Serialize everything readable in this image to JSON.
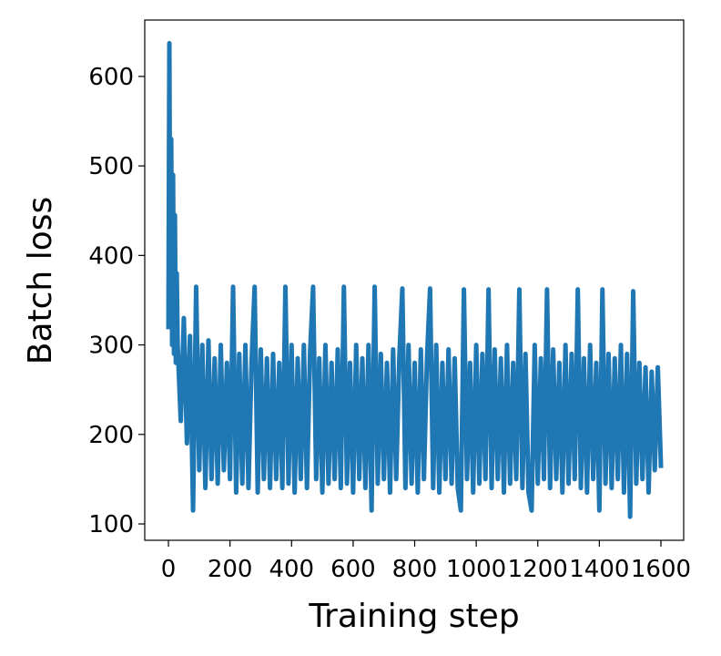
{
  "chart_data": {
    "type": "line",
    "xlabel": "Training step",
    "ylabel": "Batch loss",
    "color": "#1f77b4",
    "x": [
      0,
      3,
      6,
      9,
      12,
      15,
      18,
      21,
      24,
      27,
      30,
      40,
      50,
      60,
      70,
      80,
      90,
      100,
      110,
      120,
      130,
      140,
      150,
      160,
      170,
      180,
      190,
      200,
      210,
      220,
      230,
      240,
      250,
      260,
      270,
      280,
      290,
      300,
      310,
      320,
      330,
      340,
      350,
      360,
      370,
      380,
      390,
      400,
      410,
      420,
      430,
      440,
      450,
      460,
      470,
      480,
      490,
      500,
      510,
      520,
      530,
      540,
      550,
      560,
      570,
      580,
      590,
      600,
      610,
      620,
      630,
      640,
      650,
      660,
      670,
      680,
      690,
      700,
      710,
      720,
      730,
      740,
      750,
      760,
      770,
      780,
      790,
      800,
      810,
      820,
      830,
      840,
      850,
      860,
      870,
      880,
      890,
      900,
      910,
      920,
      930,
      940,
      950,
      960,
      970,
      980,
      990,
      1000,
      1010,
      1020,
      1030,
      1040,
      1050,
      1060,
      1070,
      1080,
      1090,
      1100,
      1110,
      1120,
      1130,
      1140,
      1150,
      1160,
      1170,
      1180,
      1190,
      1200,
      1210,
      1220,
      1230,
      1240,
      1250,
      1260,
      1270,
      1280,
      1290,
      1300,
      1310,
      1320,
      1330,
      1340,
      1350,
      1360,
      1370,
      1380,
      1390,
      1400,
      1410,
      1420,
      1430,
      1440,
      1450,
      1460,
      1470,
      1480,
      1490,
      1500,
      1510,
      1520,
      1530,
      1540,
      1550,
      1560,
      1570,
      1580,
      1590,
      1600
    ],
    "values": [
      320,
      637,
      330,
      530,
      300,
      490,
      290,
      445,
      280,
      380,
      300,
      215,
      330,
      190,
      310,
      115,
      365,
      160,
      300,
      140,
      305,
      150,
      285,
      145,
      300,
      160,
      280,
      150,
      365,
      135,
      290,
      145,
      300,
      140,
      280,
      365,
      135,
      295,
      150,
      285,
      140,
      290,
      150,
      280,
      140,
      365,
      145,
      300,
      135,
      285,
      150,
      300,
      140,
      290,
      365,
      150,
      285,
      135,
      300,
      145,
      280,
      150,
      295,
      140,
      365,
      145,
      280,
      135,
      300,
      150,
      285,
      140,
      300,
      115,
      365,
      145,
      290,
      150,
      280,
      135,
      295,
      150,
      285,
      363,
      140,
      300,
      145,
      280,
      135,
      295,
      150,
      285,
      363,
      140,
      300,
      135,
      280,
      150,
      295,
      145,
      285,
      140,
      115,
      362,
      150,
      280,
      135,
      300,
      145,
      290,
      150,
      362,
      140,
      295,
      150,
      285,
      135,
      300,
      145,
      280,
      150,
      362,
      140,
      290,
      135,
      115,
      300,
      145,
      285,
      150,
      362,
      140,
      295,
      150,
      280,
      135,
      300,
      145,
      290,
      150,
      362,
      140,
      285,
      135,
      300,
      150,
      280,
      115,
      362,
      145,
      290,
      140,
      285,
      150,
      300,
      135,
      290,
      108,
      360,
      145,
      280,
      150,
      275,
      135,
      270,
      160,
      275,
      165
    ],
    "xlim": [
      -77,
      1674
    ],
    "ylim": [
      81.7,
      663
    ],
    "xticks": [
      0,
      200,
      400,
      600,
      800,
      1000,
      1200,
      1400,
      1600
    ],
    "yticks": [
      100,
      200,
      300,
      400,
      500,
      600
    ]
  }
}
